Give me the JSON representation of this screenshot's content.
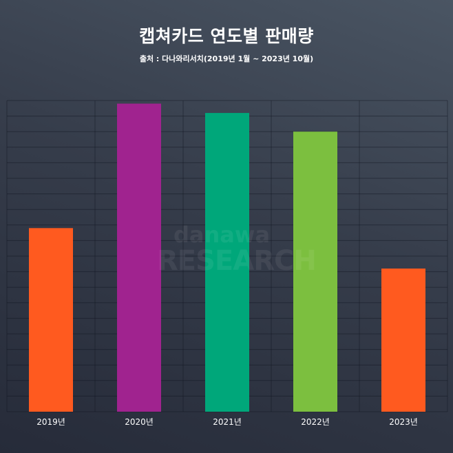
{
  "chart_data": {
    "type": "bar",
    "title": "캡쳐카드 연도별 판매량",
    "subtitle": "출처 : 다나와리서치(2019년 1월 ~ 2023년 10월)",
    "categories": [
      "2019년",
      "2020년",
      "2021년",
      "2022년",
      "2023년"
    ],
    "values": [
      59,
      99,
      96,
      90,
      46
    ],
    "colors": [
      "#ff5a1f",
      "#a0238f",
      "#00a77a",
      "#7cbf3f",
      "#ff5a1f"
    ],
    "ylim": [
      0,
      100
    ],
    "grid": true,
    "legend": "none",
    "xlabel": "",
    "ylabel": ""
  },
  "watermark": {
    "line1": "danawa",
    "line2": "RESEARCH"
  }
}
